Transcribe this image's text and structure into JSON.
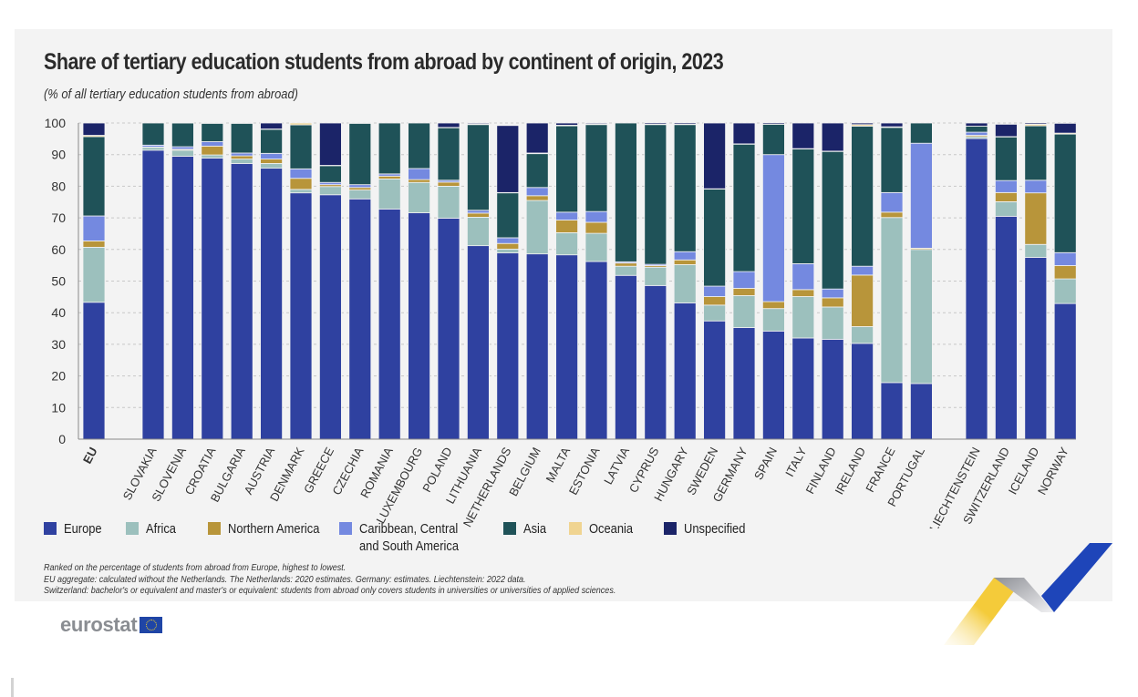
{
  "header": {
    "title": "Share of tertiary education students from abroad by continent of origin, 2023",
    "subtitle": "(% of all tertiary education students from abroad)"
  },
  "legend": [
    {
      "name": "Europe",
      "color": "#2f41a0"
    },
    {
      "name": "Africa",
      "color": "#9cc0bd"
    },
    {
      "name": "Northern America",
      "color": "#b8953a"
    },
    {
      "name": "Caribbean, Central and South America",
      "color": "#7489e0"
    },
    {
      "name": "Asia",
      "color": "#1f5258"
    },
    {
      "name": "Oceania",
      "color": "#f0d491"
    },
    {
      "name": "Unspecified",
      "color": "#1b2468"
    }
  ],
  "notes": [
    "Ranked on the percentage of students from abroad from Europe, highest to lowest.",
    "EU aggregate: calculated without the Netherlands. The Netherlands: 2020 estimates. Germany: estimates. Liechtenstein: 2022 data.",
    "Switzerland: bachelor's or equivalent and master's or equivalent: students from abroad only covers students in universities or universities of applied sciences."
  ],
  "logo": {
    "text": "eurostat"
  },
  "chart_data": {
    "type": "bar",
    "stacked": true,
    "title": "Share of tertiary education students from abroad by continent of origin, 2023",
    "subtitle": "(% of all tertiary education students from abroad)",
    "xlabel": "",
    "ylabel": "",
    "ylim": [
      0,
      100
    ],
    "yticks": [
      0,
      10,
      20,
      30,
      40,
      50,
      60,
      70,
      80,
      90,
      100
    ],
    "grid": true,
    "legend_position": "bottom",
    "groups": [
      [
        "EU"
      ],
      [
        "SLOVAKIA",
        "SLOVENIA",
        "CROATIA",
        "BULGARIA",
        "AUSTRIA",
        "DENMARK",
        "GREECE",
        "CZECHIA",
        "ROMANIA",
        "LUXEMBOURG",
        "POLAND",
        "LITHUANIA",
        "NETHERLANDS",
        "BELGIUM",
        "MALTA",
        "ESTONIA",
        "LATVIA",
        "CYPRUS",
        "HUNGARY",
        "SWEDEN",
        "GERMANY",
        "SPAIN",
        "ITALY",
        "FINLAND",
        "IRELAND",
        "FRANCE",
        "PORTUGAL"
      ],
      [
        "LIECHTENSTEIN",
        "SWITZERLAND",
        "ICELAND",
        "NORWAY"
      ]
    ],
    "categories": [
      "EU",
      "SLOVAKIA",
      "SLOVENIA",
      "CROATIA",
      "BULGARIA",
      "AUSTRIA",
      "DENMARK",
      "GREECE",
      "CZECHIA",
      "ROMANIA",
      "LUXEMBOURG",
      "POLAND",
      "LITHUANIA",
      "NETHERLANDS",
      "BELGIUM",
      "MALTA",
      "ESTONIA",
      "LATVIA",
      "CYPRUS",
      "HUNGARY",
      "SWEDEN",
      "GERMANY",
      "SPAIN",
      "ITALY",
      "FINLAND",
      "IRELAND",
      "FRANCE",
      "PORTUGAL",
      "LIECHTENSTEIN",
      "SWITZERLAND",
      "ICELAND",
      "NORWAY"
    ],
    "series": [
      {
        "name": "Europe",
        "values": [
          43.3,
          91.4,
          89.5,
          88.9,
          87.2,
          85.7,
          77.9,
          77.3,
          76.0,
          72.8,
          71.6,
          69.9,
          61.2,
          58.9,
          58.6,
          58.3,
          56.2,
          51.8,
          48.6,
          43.1,
          37.4,
          35.3,
          34.2,
          32.0,
          31.6,
          30.3,
          17.9,
          17.6,
          95.1,
          70.5,
          57.5,
          42.9
        ]
      },
      {
        "name": "Africa",
        "values": [
          17.4,
          0.9,
          1.9,
          1.0,
          1.4,
          1.5,
          1.1,
          2.6,
          2.8,
          9.5,
          9.6,
          10.1,
          9.0,
          1.2,
          16.9,
          7.0,
          8.9,
          2.9,
          5.8,
          12.1,
          5.0,
          10.1,
          7.1,
          13.1,
          10.2,
          5.3,
          52.2,
          42.4,
          0.6,
          4.6,
          4.1,
          7.8
        ]
      },
      {
        "name": "Northern America",
        "values": [
          2.0,
          0.1,
          0.3,
          2.8,
          1.0,
          1.4,
          3.5,
          0.6,
          0.8,
          0.9,
          0.9,
          1.3,
          1.3,
          1.8,
          1.5,
          4.0,
          3.5,
          1.0,
          0.5,
          1.5,
          2.7,
          2.3,
          2.2,
          2.2,
          2.9,
          16.3,
          1.7,
          0.4,
          0.4,
          2.9,
          16.3,
          4.2
        ]
      },
      {
        "name": "Caribbean, Central and South America",
        "values": [
          7.9,
          0.6,
          0.8,
          1.4,
          0.9,
          1.8,
          3.0,
          0.7,
          0.9,
          0.7,
          3.5,
          0.6,
          0.9,
          1.8,
          2.6,
          2.5,
          3.4,
          0.4,
          0.4,
          2.6,
          3.3,
          5.3,
          46.5,
          8.2,
          2.8,
          2.8,
          6.2,
          33.2,
          1.0,
          3.8,
          4.0,
          4.1
        ]
      },
      {
        "name": "Asia",
        "values": [
          25.1,
          7.0,
          7.5,
          5.8,
          9.4,
          7.6,
          13.9,
          5.3,
          19.4,
          16.1,
          14.4,
          16.6,
          27.1,
          14.2,
          10.7,
          27.3,
          27.5,
          43.9,
          44.2,
          40.2,
          30.7,
          40.3,
          9.6,
          36.3,
          43.5,
          44.3,
          20.6,
          6.4,
          1.9,
          13.8,
          17.2,
          37.5
        ]
      },
      {
        "name": "Oceania",
        "values": [
          0.4,
          0.0,
          0.0,
          0.1,
          0.1,
          0.1,
          0.6,
          0.1,
          0.1,
          0.0,
          0.0,
          0.1,
          0.2,
          0.1,
          0.2,
          0.2,
          0.2,
          0.0,
          0.1,
          0.1,
          0.1,
          0.1,
          0.0,
          0.1,
          0.1,
          0.5,
          0.2,
          0.0,
          0.0,
          0.1,
          0.5,
          0.3
        ]
      },
      {
        "name": "Unspecified",
        "values": [
          3.9,
          0.0,
          0.1,
          0.0,
          0.0,
          1.9,
          0.0,
          13.4,
          0.0,
          0.0,
          0.0,
          1.4,
          0.3,
          21.2,
          9.5,
          0.7,
          0.3,
          0.0,
          0.4,
          0.4,
          20.8,
          6.6,
          0.4,
          8.1,
          8.9,
          0.5,
          1.2,
          0.0,
          1.0,
          3.9,
          0.4,
          3.1
        ]
      }
    ]
  }
}
